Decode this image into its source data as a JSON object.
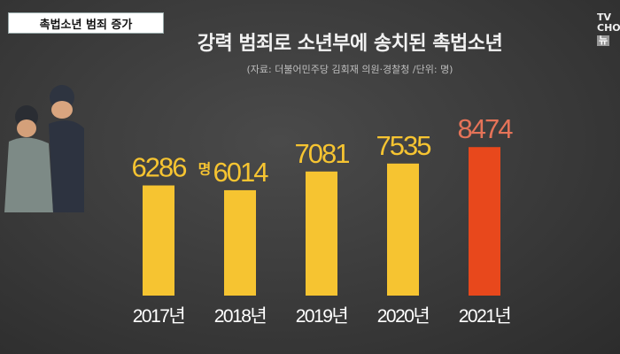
{
  "tag_label": "촉법소년 범죄 증가",
  "logo": {
    "line1": "TV",
    "line2": "CHO",
    "line3": "뉴"
  },
  "chart_data": {
    "type": "bar",
    "title": "강력 범죄로 소년부에 송치된 촉법소년",
    "subtitle": "(자료: 더불어민주당 김회재 의원·경찰청 /단위: 명)",
    "categories": [
      "2017년",
      "2018년",
      "2019년",
      "2020년",
      "2021년"
    ],
    "values": [
      6286,
      6014,
      7081,
      7535,
      8474
    ],
    "value_labels": [
      "6286",
      "6014",
      "7081",
      "7535",
      "8474"
    ],
    "unit_label": "명",
    "ylim": [
      0,
      9000
    ],
    "colors": {
      "default": "#f6c431",
      "highlight": "#e8481c",
      "highlight_label": "#e57358"
    },
    "grid": false
  }
}
